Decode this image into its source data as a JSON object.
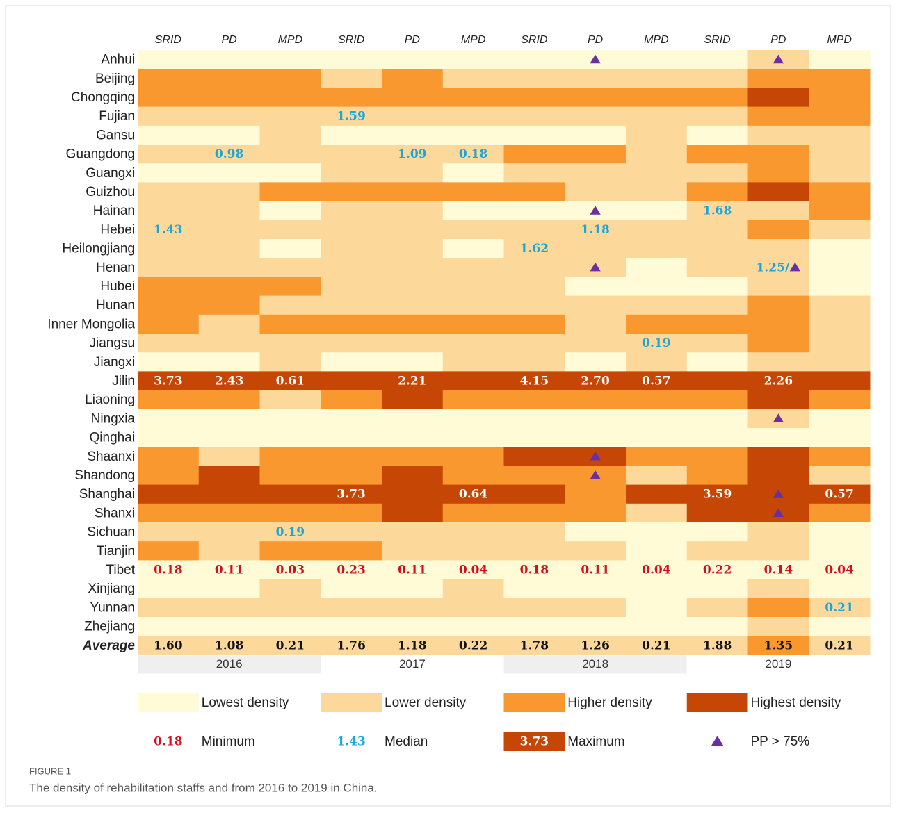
{
  "columns": [
    "SRID",
    "PD",
    "MPD",
    "SRID",
    "PD",
    "MPD",
    "SRID",
    "PD",
    "MPD",
    "SRID",
    "PD",
    "MPD"
  ],
  "years": [
    "2016",
    "2017",
    "2018",
    "2019"
  ],
  "legend": [
    {
      "label": "Lowest density",
      "color": "#FEFBD6"
    },
    {
      "label": "Lower density",
      "color": "#FDD89B"
    },
    {
      "label": "Higher density",
      "color": "#F8982F"
    },
    {
      "label": "Highest density",
      "color": "#C64705"
    }
  ],
  "styles": {
    "min": "#D0101E",
    "median": "#1AA6D6",
    "max": "#FFFFFF",
    "avg": "#111111",
    "pp": "#6A2FA0"
  },
  "key": [
    {
      "sample": "0.18",
      "label": "Minimum",
      "kind": "min"
    },
    {
      "sample": "1.43",
      "label": "Median",
      "kind": "median"
    },
    {
      "sample": "3.73",
      "label": "Maximum",
      "kind": "max"
    },
    {
      "label": "PP > 75%",
      "kind": "pp"
    }
  ],
  "rows": [
    {
      "name": "Anhui",
      "levels": [
        0,
        0,
        0,
        0,
        0,
        0,
        0,
        0,
        0,
        0,
        1,
        0
      ],
      "marks": [
        {
          "col": 7,
          "kind": "pp"
        },
        {
          "col": 10,
          "kind": "pp"
        }
      ]
    },
    {
      "name": "Beijing",
      "levels": [
        2,
        2,
        2,
        1,
        2,
        1,
        1,
        1,
        1,
        1,
        2,
        2
      ],
      "marks": []
    },
    {
      "name": "Chongqing",
      "levels": [
        2,
        2,
        2,
        2,
        2,
        2,
        2,
        2,
        2,
        2,
        3,
        2
      ],
      "marks": []
    },
    {
      "name": "Fujian",
      "levels": [
        1,
        1,
        1,
        1,
        1,
        1,
        1,
        1,
        1,
        1,
        2,
        2
      ],
      "marks": [
        {
          "col": 3,
          "text": "1.59",
          "kind": "median"
        }
      ]
    },
    {
      "name": "Gansu",
      "levels": [
        0,
        0,
        1,
        0,
        0,
        0,
        0,
        0,
        1,
        0,
        1,
        1
      ],
      "marks": []
    },
    {
      "name": "Guangdong",
      "levels": [
        1,
        1,
        1,
        1,
        1,
        1,
        2,
        2,
        1,
        2,
        2,
        1
      ],
      "marks": [
        {
          "col": 1,
          "text": "0.98",
          "kind": "median"
        },
        {
          "col": 4,
          "text": "1.09",
          "kind": "median"
        },
        {
          "col": 5,
          "text": "0.18",
          "kind": "median"
        }
      ]
    },
    {
      "name": "Guangxi",
      "levels": [
        0,
        0,
        0,
        1,
        1,
        0,
        1,
        1,
        1,
        1,
        2,
        1
      ],
      "marks": []
    },
    {
      "name": "Guizhou",
      "levels": [
        1,
        1,
        2,
        2,
        2,
        2,
        2,
        1,
        1,
        2,
        3,
        2
      ],
      "marks": []
    },
    {
      "name": "Hainan",
      "levels": [
        1,
        1,
        0,
        1,
        1,
        0,
        0,
        0,
        0,
        1,
        1,
        2
      ],
      "marks": [
        {
          "col": 7,
          "kind": "pp"
        },
        {
          "col": 9,
          "text": "1.68",
          "kind": "median"
        }
      ]
    },
    {
      "name": "Hebei",
      "levels": [
        1,
        1,
        1,
        1,
        1,
        1,
        1,
        1,
        1,
        1,
        2,
        1
      ],
      "marks": [
        {
          "col": 0,
          "text": "1.43",
          "kind": "median"
        },
        {
          "col": 7,
          "text": "1.18",
          "kind": "median"
        }
      ]
    },
    {
      "name": "Heilongjiang",
      "levels": [
        1,
        1,
        0,
        1,
        1,
        0,
        1,
        1,
        1,
        1,
        1,
        0
      ],
      "marks": [
        {
          "col": 6,
          "text": "1.62",
          "kind": "median"
        }
      ]
    },
    {
      "name": "Henan",
      "levels": [
        1,
        1,
        1,
        1,
        1,
        1,
        1,
        1,
        0,
        1,
        1,
        0
      ],
      "marks": [
        {
          "col": 7,
          "kind": "pp"
        },
        {
          "col": 10,
          "text": "1.25/",
          "kind": "median"
        },
        {
          "col": 10,
          "kind": "pp"
        }
      ]
    },
    {
      "name": "Hubei",
      "levels": [
        2,
        2,
        2,
        1,
        1,
        1,
        1,
        0,
        0,
        0,
        1,
        0
      ],
      "marks": []
    },
    {
      "name": "Hunan",
      "levels": [
        2,
        2,
        1,
        1,
        1,
        1,
        1,
        1,
        1,
        1,
        2,
        1
      ],
      "marks": []
    },
    {
      "name": "Inner Mongolia",
      "levels": [
        2,
        1,
        2,
        2,
        2,
        2,
        2,
        1,
        2,
        2,
        2,
        1
      ],
      "marks": []
    },
    {
      "name": "Jiangsu",
      "levels": [
        1,
        1,
        1,
        1,
        1,
        1,
        1,
        1,
        1,
        1,
        2,
        1
      ],
      "marks": [
        {
          "col": 8,
          "text": "0.19",
          "kind": "median"
        }
      ]
    },
    {
      "name": "Jiangxi",
      "levels": [
        0,
        0,
        1,
        0,
        0,
        1,
        1,
        0,
        1,
        0,
        1,
        1
      ],
      "marks": []
    },
    {
      "name": "Jilin",
      "levels": [
        3,
        3,
        3,
        3,
        3,
        3,
        3,
        3,
        3,
        3,
        3,
        3
      ],
      "marks": [
        {
          "col": 0,
          "text": "3.73",
          "kind": "max"
        },
        {
          "col": 1,
          "text": "2.43",
          "kind": "max"
        },
        {
          "col": 2,
          "text": "0.61",
          "kind": "max"
        },
        {
          "col": 4,
          "text": "2.21",
          "kind": "max"
        },
        {
          "col": 6,
          "text": "4.15",
          "kind": "max"
        },
        {
          "col": 7,
          "text": "2.70",
          "kind": "max"
        },
        {
          "col": 8,
          "text": "0.57",
          "kind": "max"
        },
        {
          "col": 10,
          "text": "2.26",
          "kind": "max"
        }
      ]
    },
    {
      "name": "Liaoning",
      "levels": [
        2,
        2,
        1,
        2,
        3,
        2,
        2,
        2,
        2,
        2,
        3,
        2
      ],
      "marks": []
    },
    {
      "name": "Ningxia",
      "levels": [
        0,
        0,
        0,
        0,
        0,
        0,
        0,
        0,
        0,
        0,
        1,
        0
      ],
      "marks": [
        {
          "col": 10,
          "kind": "pp"
        }
      ]
    },
    {
      "name": "Qinghai",
      "levels": [
        0,
        0,
        0,
        0,
        0,
        0,
        0,
        0,
        0,
        0,
        0,
        0
      ],
      "marks": []
    },
    {
      "name": "Shaanxi",
      "levels": [
        2,
        1,
        2,
        2,
        2,
        2,
        3,
        3,
        2,
        2,
        3,
        2
      ],
      "marks": [
        {
          "col": 7,
          "kind": "pp"
        }
      ]
    },
    {
      "name": "Shandong",
      "levels": [
        2,
        3,
        2,
        2,
        3,
        2,
        2,
        2,
        1,
        2,
        3,
        1
      ],
      "marks": [
        {
          "col": 7,
          "kind": "pp"
        }
      ]
    },
    {
      "name": "Shanghai",
      "levels": [
        3,
        3,
        3,
        3,
        3,
        3,
        3,
        2,
        3,
        3,
        3,
        3
      ],
      "marks": [
        {
          "col": 3,
          "text": "3.73",
          "kind": "max"
        },
        {
          "col": 5,
          "text": "0.64",
          "kind": "max"
        },
        {
          "col": 9,
          "text": "3.59",
          "kind": "max"
        },
        {
          "col": 10,
          "kind": "pp"
        },
        {
          "col": 11,
          "text": "0.57",
          "kind": "max"
        }
      ]
    },
    {
      "name": "Shanxi",
      "levels": [
        2,
        2,
        2,
        2,
        3,
        2,
        2,
        2,
        1,
        3,
        3,
        2
      ],
      "marks": [
        {
          "col": 10,
          "kind": "pp"
        }
      ]
    },
    {
      "name": "Sichuan",
      "levels": [
        1,
        1,
        1,
        1,
        1,
        1,
        1,
        0,
        0,
        0,
        1,
        0
      ],
      "marks": [
        {
          "col": 2,
          "text": "0.19",
          "kind": "median"
        }
      ]
    },
    {
      "name": "Tianjin",
      "levels": [
        2,
        1,
        2,
        2,
        1,
        1,
        1,
        1,
        0,
        1,
        1,
        0
      ],
      "marks": []
    },
    {
      "name": "Tibet",
      "levels": [
        0,
        0,
        0,
        0,
        0,
        0,
        0,
        0,
        0,
        0,
        0,
        0
      ],
      "marks": [
        {
          "col": 0,
          "text": "0.18",
          "kind": "min"
        },
        {
          "col": 1,
          "text": "0.11",
          "kind": "min"
        },
        {
          "col": 2,
          "text": "0.03",
          "kind": "min"
        },
        {
          "col": 3,
          "text": "0.23",
          "kind": "min"
        },
        {
          "col": 4,
          "text": "0.11",
          "kind": "min"
        },
        {
          "col": 5,
          "text": "0.04",
          "kind": "min"
        },
        {
          "col": 6,
          "text": "0.18",
          "kind": "min"
        },
        {
          "col": 7,
          "text": "0.11",
          "kind": "min"
        },
        {
          "col": 8,
          "text": "0.04",
          "kind": "min"
        },
        {
          "col": 9,
          "text": "0.22",
          "kind": "min"
        },
        {
          "col": 10,
          "text": "0.14",
          "kind": "min"
        },
        {
          "col": 11,
          "text": "0.04",
          "kind": "min"
        }
      ]
    },
    {
      "name": "Xinjiang",
      "levels": [
        0,
        0,
        1,
        0,
        0,
        1,
        0,
        0,
        0,
        0,
        1,
        0
      ],
      "marks": []
    },
    {
      "name": "Yunnan",
      "levels": [
        1,
        1,
        1,
        1,
        1,
        1,
        1,
        1,
        0,
        1,
        2,
        1
      ],
      "marks": [
        {
          "col": 11,
          "text": "0.21",
          "kind": "median"
        }
      ]
    },
    {
      "name": "Zhejiang",
      "levels": [
        0,
        0,
        0,
        0,
        0,
        0,
        0,
        0,
        0,
        0,
        1,
        0
      ],
      "marks": []
    },
    {
      "name": "Average",
      "levels": [
        1,
        1,
        1,
        1,
        1,
        1,
        1,
        1,
        1,
        1,
        2,
        1
      ],
      "marks": [
        {
          "col": 0,
          "text": "1.60",
          "kind": "avg"
        },
        {
          "col": 1,
          "text": "1.08",
          "kind": "avg"
        },
        {
          "col": 2,
          "text": "0.21",
          "kind": "avg"
        },
        {
          "col": 3,
          "text": "1.76",
          "kind": "avg"
        },
        {
          "col": 4,
          "text": "1.18",
          "kind": "avg"
        },
        {
          "col": 5,
          "text": "0.22",
          "kind": "avg"
        },
        {
          "col": 6,
          "text": "1.78",
          "kind": "avg"
        },
        {
          "col": 7,
          "text": "1.26",
          "kind": "avg"
        },
        {
          "col": 8,
          "text": "0.21",
          "kind": "avg"
        },
        {
          "col": 9,
          "text": "1.88",
          "kind": "avg"
        },
        {
          "col": 10,
          "text": "1.35",
          "kind": "avg"
        },
        {
          "col": 11,
          "text": "0.21",
          "kind": "avg"
        }
      ]
    }
  ],
  "caption": {
    "label": "FIGURE 1",
    "text": "The density of rehabilitation staffs and from 2016 to 2019 in China."
  }
}
